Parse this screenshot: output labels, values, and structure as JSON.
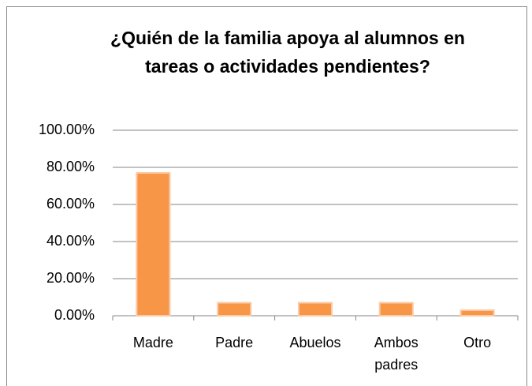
{
  "chart_data": {
    "type": "bar",
    "title": "¿Quién de la familia apoya al alumnos en tareas o actividades pendientes?",
    "categories": [
      "Madre",
      "Padre",
      "Abuelos",
      "Ambos padres",
      "Otro"
    ],
    "values": [
      77,
      7,
      7,
      7,
      3
    ],
    "color": "#f79646",
    "ylim": [
      0,
      100
    ],
    "yticks": [
      {
        "value": 0,
        "label": "0.00%"
      },
      {
        "value": 20,
        "label": "20.00%"
      },
      {
        "value": 40,
        "label": "40.00%"
      },
      {
        "value": 60,
        "label": "60.00%"
      },
      {
        "value": 80,
        "label": "80.00%"
      },
      {
        "value": 100,
        "label": "100.00%"
      }
    ],
    "grid": true
  }
}
